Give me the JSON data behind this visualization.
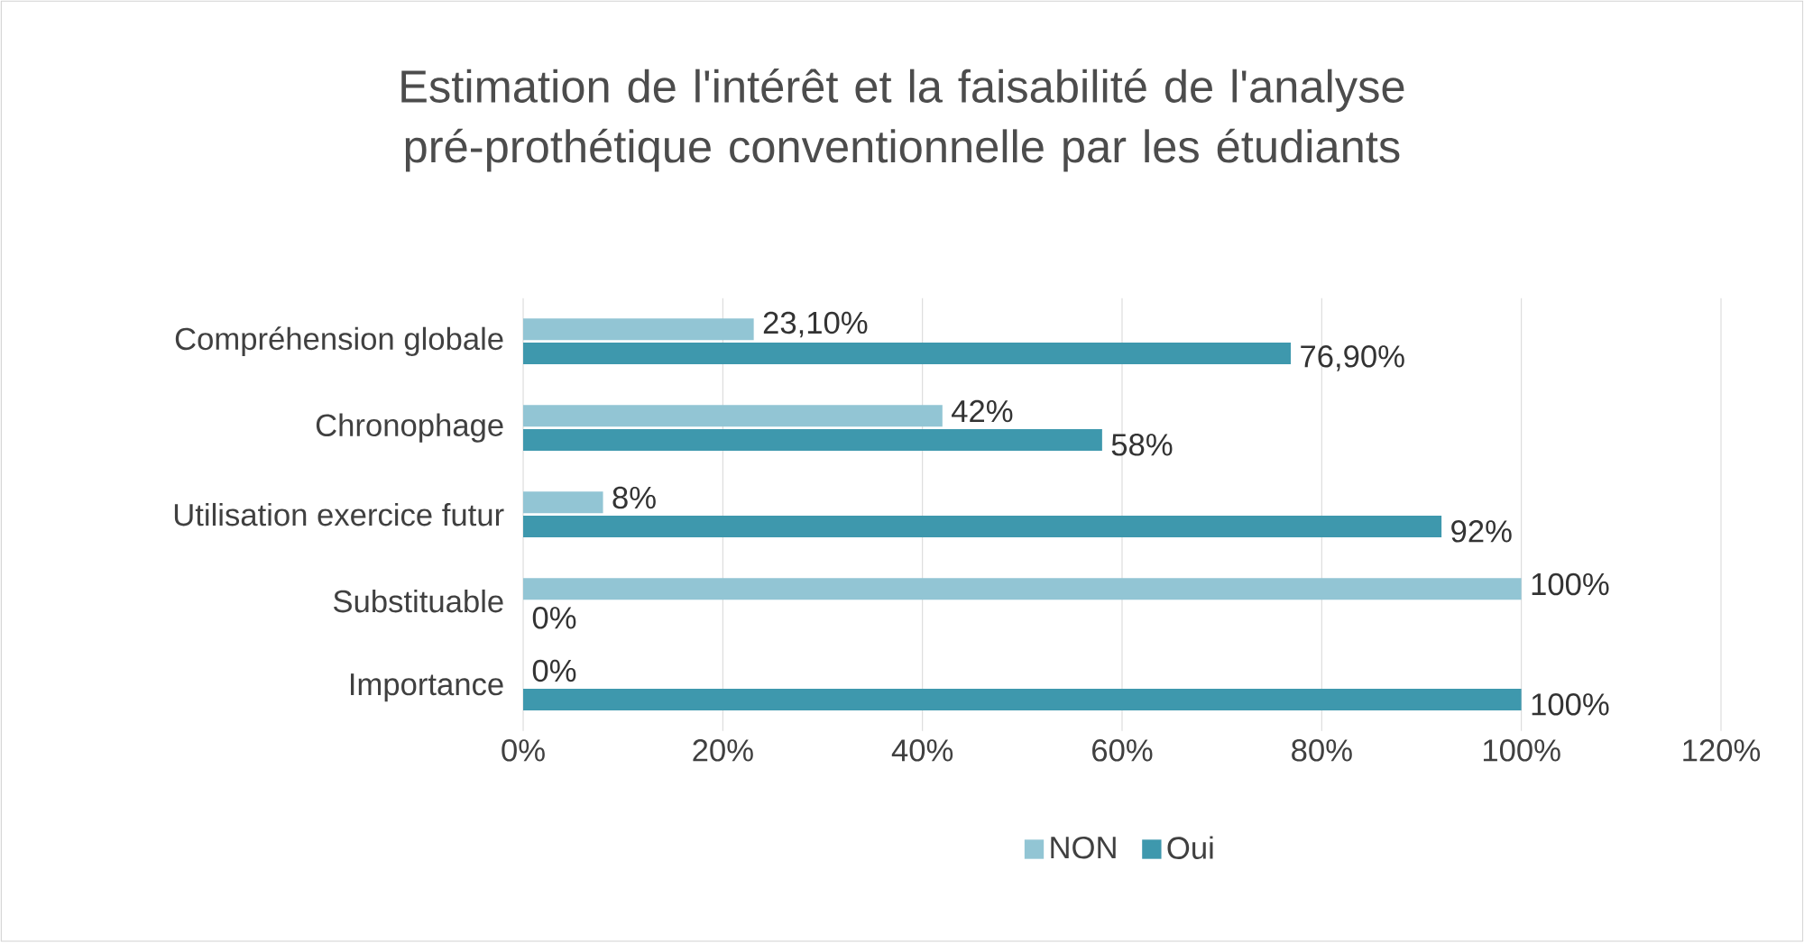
{
  "chart_data": {
    "type": "bar",
    "orientation": "horizontal",
    "title": "Estimation de l'intérêt et la faisabilité de l'analyse pré-prothétique conventionnelle par les étudiants",
    "categories": [
      "Compréhension globale",
      "Chronophage",
      "Utilisation exercice futur",
      "Substituable",
      "Importance"
    ],
    "series": [
      {
        "name": "NON",
        "color": "#92c5d4",
        "values": [
          23.1,
          42,
          8,
          100,
          0
        ],
        "value_labels": [
          "23,10%",
          "42%",
          "8%",
          "100%",
          "0%"
        ]
      },
      {
        "name": "Oui",
        "color": "#3e98ad",
        "values": [
          76.9,
          58,
          92,
          0,
          100
        ],
        "value_labels": [
          "76,90%",
          "58%",
          "92%",
          "0%",
          "100%"
        ]
      }
    ],
    "xlim": [
      0,
      120
    ],
    "xticks": [
      {
        "value": 0,
        "label": "0%"
      },
      {
        "value": 20,
        "label": "20%"
      },
      {
        "value": 40,
        "label": "40%"
      },
      {
        "value": 60,
        "label": "60%"
      },
      {
        "value": 80,
        "label": "80%"
      },
      {
        "value": 100,
        "label": "100%"
      },
      {
        "value": 120,
        "label": "120%"
      }
    ],
    "grid": "x",
    "legend": "bottom"
  }
}
